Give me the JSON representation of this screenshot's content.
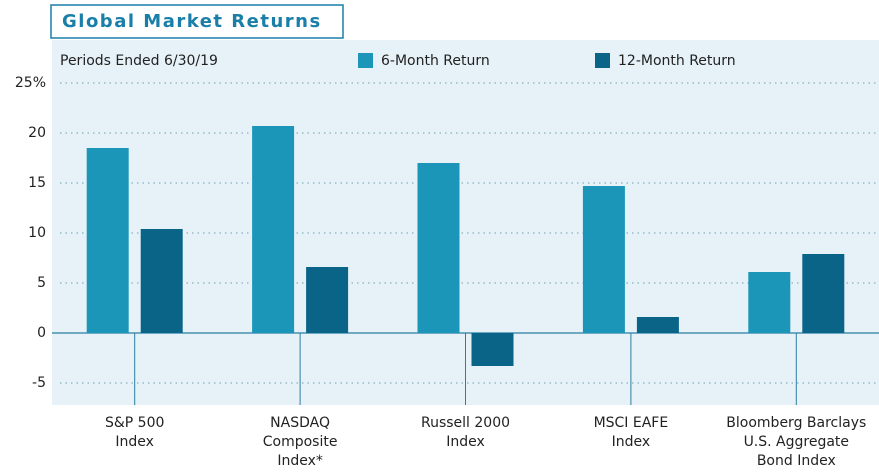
{
  "chart_data": {
    "type": "bar",
    "title": "Global Market Returns",
    "subtitle": "Periods Ended 6/30/19",
    "categories": [
      [
        "S&P 500",
        "Index"
      ],
      [
        "NASDAQ",
        "Composite",
        "Index*"
      ],
      [
        "Russell 2000",
        "Index"
      ],
      [
        "MSCI EAFE",
        "Index"
      ],
      [
        "Bloomberg Barclays",
        "U.S. Aggregate",
        "Bond Index"
      ]
    ],
    "series": [
      {
        "name": "6-Month Return",
        "color": "#1b96b9",
        "values": [
          18.5,
          20.7,
          17.0,
          14.7,
          6.1
        ]
      },
      {
        "name": "12-Month Return",
        "color": "#0a6487",
        "values": [
          10.4,
          6.6,
          -3.3,
          1.6,
          7.9
        ]
      }
    ],
    "ylim": [
      -7.2,
      29.3
    ],
    "yticks": [
      -5,
      0,
      5,
      10,
      15,
      20,
      {
        "value": 25,
        "label": "25%"
      }
    ],
    "grid": true
  }
}
